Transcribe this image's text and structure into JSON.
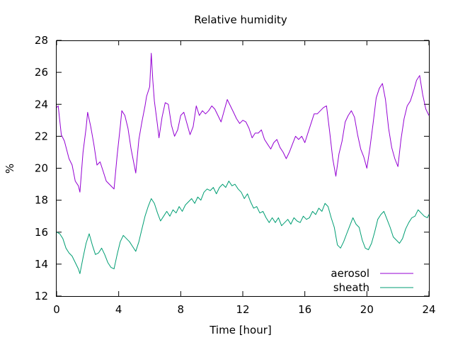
{
  "chart_data": {
    "type": "line",
    "title": "Relative humidity",
    "xlabel": "Time [hour]",
    "ylabel": "%",
    "xlim": [
      0,
      24
    ],
    "ylim": [
      12,
      28
    ],
    "xticks": [
      0,
      4,
      8,
      12,
      16,
      20,
      24
    ],
    "yticks": [
      12,
      14,
      16,
      18,
      20,
      22,
      24,
      26,
      28
    ],
    "grid": false,
    "legend_position": "bottom-right",
    "series": [
      {
        "name": "aerosol",
        "color": "#9400d3",
        "points": [
          [
            0.0,
            23.8
          ],
          [
            0.1,
            23.9
          ],
          [
            0.3,
            22.1
          ],
          [
            0.5,
            21.7
          ],
          [
            0.8,
            20.6
          ],
          [
            1.0,
            20.2
          ],
          [
            1.2,
            19.2
          ],
          [
            1.4,
            18.9
          ],
          [
            1.5,
            18.5
          ],
          [
            1.7,
            21.0
          ],
          [
            1.9,
            22.5
          ],
          [
            2.0,
            23.5
          ],
          [
            2.2,
            22.6
          ],
          [
            2.4,
            21.5
          ],
          [
            2.6,
            20.2
          ],
          [
            2.8,
            20.4
          ],
          [
            3.0,
            19.8
          ],
          [
            3.2,
            19.2
          ],
          [
            3.4,
            19.0
          ],
          [
            3.6,
            18.8
          ],
          [
            3.7,
            18.7
          ],
          [
            3.9,
            20.8
          ],
          [
            4.1,
            22.6
          ],
          [
            4.2,
            23.6
          ],
          [
            4.4,
            23.3
          ],
          [
            4.6,
            22.5
          ],
          [
            4.8,
            21.2
          ],
          [
            5.0,
            20.2
          ],
          [
            5.1,
            19.7
          ],
          [
            5.3,
            21.8
          ],
          [
            5.5,
            22.9
          ],
          [
            5.7,
            23.9
          ],
          [
            5.8,
            24.5
          ],
          [
            6.0,
            25.1
          ],
          [
            6.1,
            27.2
          ],
          [
            6.2,
            25.5
          ],
          [
            6.3,
            24.2
          ],
          [
            6.5,
            22.7
          ],
          [
            6.6,
            21.9
          ],
          [
            6.8,
            23.2
          ],
          [
            7.0,
            24.1
          ],
          [
            7.2,
            24.0
          ],
          [
            7.4,
            22.7
          ],
          [
            7.6,
            22.0
          ],
          [
            7.8,
            22.4
          ],
          [
            8.0,
            23.3
          ],
          [
            8.2,
            23.5
          ],
          [
            8.4,
            22.8
          ],
          [
            8.6,
            22.1
          ],
          [
            8.8,
            22.6
          ],
          [
            9.0,
            23.9
          ],
          [
            9.2,
            23.3
          ],
          [
            9.4,
            23.6
          ],
          [
            9.6,
            23.4
          ],
          [
            9.8,
            23.6
          ],
          [
            10.0,
            23.9
          ],
          [
            10.2,
            23.7
          ],
          [
            10.4,
            23.3
          ],
          [
            10.6,
            22.9
          ],
          [
            10.8,
            23.6
          ],
          [
            11.0,
            24.3
          ],
          [
            11.2,
            23.9
          ],
          [
            11.4,
            23.5
          ],
          [
            11.6,
            23.1
          ],
          [
            11.8,
            22.8
          ],
          [
            12.0,
            23.0
          ],
          [
            12.2,
            22.9
          ],
          [
            12.4,
            22.5
          ],
          [
            12.6,
            21.9
          ],
          [
            12.8,
            22.2
          ],
          [
            13.0,
            22.2
          ],
          [
            13.2,
            22.4
          ],
          [
            13.4,
            21.8
          ],
          [
            13.6,
            21.5
          ],
          [
            13.8,
            21.2
          ],
          [
            14.0,
            21.6
          ],
          [
            14.2,
            21.8
          ],
          [
            14.4,
            21.3
          ],
          [
            14.6,
            21.0
          ],
          [
            14.8,
            20.6
          ],
          [
            15.0,
            21.0
          ],
          [
            15.2,
            21.5
          ],
          [
            15.4,
            22.0
          ],
          [
            15.6,
            21.8
          ],
          [
            15.8,
            22.0
          ],
          [
            16.0,
            21.6
          ],
          [
            16.2,
            22.2
          ],
          [
            16.4,
            22.8
          ],
          [
            16.6,
            23.4
          ],
          [
            16.8,
            23.4
          ],
          [
            17.0,
            23.6
          ],
          [
            17.2,
            23.8
          ],
          [
            17.4,
            23.9
          ],
          [
            17.6,
            22.3
          ],
          [
            17.8,
            20.6
          ],
          [
            18.0,
            19.5
          ],
          [
            18.2,
            20.9
          ],
          [
            18.4,
            21.7
          ],
          [
            18.6,
            22.9
          ],
          [
            18.8,
            23.3
          ],
          [
            19.0,
            23.6
          ],
          [
            19.2,
            23.2
          ],
          [
            19.4,
            22.1
          ],
          [
            19.6,
            21.2
          ],
          [
            19.8,
            20.7
          ],
          [
            20.0,
            20.0
          ],
          [
            20.2,
            21.3
          ],
          [
            20.4,
            22.8
          ],
          [
            20.6,
            24.4
          ],
          [
            20.8,
            25.0
          ],
          [
            21.0,
            25.3
          ],
          [
            21.2,
            24.3
          ],
          [
            21.4,
            22.5
          ],
          [
            21.6,
            21.3
          ],
          [
            21.8,
            20.6
          ],
          [
            22.0,
            20.1
          ],
          [
            22.2,
            21.8
          ],
          [
            22.4,
            23.1
          ],
          [
            22.6,
            23.9
          ],
          [
            22.8,
            24.2
          ],
          [
            23.0,
            24.8
          ],
          [
            23.2,
            25.5
          ],
          [
            23.4,
            25.8
          ],
          [
            23.6,
            24.6
          ],
          [
            23.8,
            23.7
          ],
          [
            24.0,
            23.3
          ]
        ]
      },
      {
        "name": "sheath",
        "color": "#009e73",
        "points": [
          [
            0.0,
            16.0
          ],
          [
            0.2,
            15.9
          ],
          [
            0.4,
            15.6
          ],
          [
            0.6,
            15.0
          ],
          [
            0.8,
            14.7
          ],
          [
            1.0,
            14.5
          ],
          [
            1.2,
            14.1
          ],
          [
            1.4,
            13.7
          ],
          [
            1.5,
            13.4
          ],
          [
            1.7,
            14.4
          ],
          [
            1.9,
            15.3
          ],
          [
            2.1,
            15.9
          ],
          [
            2.3,
            15.2
          ],
          [
            2.5,
            14.6
          ],
          [
            2.7,
            14.7
          ],
          [
            2.9,
            15.0
          ],
          [
            3.1,
            14.6
          ],
          [
            3.3,
            14.1
          ],
          [
            3.5,
            13.8
          ],
          [
            3.7,
            13.7
          ],
          [
            3.9,
            14.6
          ],
          [
            4.1,
            15.4
          ],
          [
            4.3,
            15.8
          ],
          [
            4.5,
            15.6
          ],
          [
            4.7,
            15.4
          ],
          [
            4.9,
            15.1
          ],
          [
            5.1,
            14.8
          ],
          [
            5.3,
            15.4
          ],
          [
            5.5,
            16.2
          ],
          [
            5.7,
            17.0
          ],
          [
            5.9,
            17.6
          ],
          [
            6.1,
            18.1
          ],
          [
            6.3,
            17.8
          ],
          [
            6.5,
            17.2
          ],
          [
            6.7,
            16.7
          ],
          [
            6.9,
            17.0
          ],
          [
            7.1,
            17.3
          ],
          [
            7.3,
            17.0
          ],
          [
            7.5,
            17.4
          ],
          [
            7.7,
            17.2
          ],
          [
            7.9,
            17.6
          ],
          [
            8.1,
            17.3
          ],
          [
            8.3,
            17.7
          ],
          [
            8.5,
            17.9
          ],
          [
            8.7,
            18.1
          ],
          [
            8.9,
            17.8
          ],
          [
            9.1,
            18.2
          ],
          [
            9.3,
            18.0
          ],
          [
            9.5,
            18.5
          ],
          [
            9.7,
            18.7
          ],
          [
            9.9,
            18.6
          ],
          [
            10.1,
            18.8
          ],
          [
            10.3,
            18.4
          ],
          [
            10.5,
            18.8
          ],
          [
            10.7,
            19.0
          ],
          [
            10.9,
            18.8
          ],
          [
            11.1,
            19.2
          ],
          [
            11.3,
            18.9
          ],
          [
            11.5,
            19.0
          ],
          [
            11.7,
            18.7
          ],
          [
            11.9,
            18.5
          ],
          [
            12.1,
            18.1
          ],
          [
            12.3,
            18.4
          ],
          [
            12.5,
            17.9
          ],
          [
            12.7,
            17.5
          ],
          [
            12.9,
            17.6
          ],
          [
            13.1,
            17.2
          ],
          [
            13.3,
            17.3
          ],
          [
            13.5,
            16.9
          ],
          [
            13.7,
            16.6
          ],
          [
            13.9,
            16.9
          ],
          [
            14.1,
            16.6
          ],
          [
            14.3,
            16.9
          ],
          [
            14.5,
            16.4
          ],
          [
            14.7,
            16.6
          ],
          [
            14.9,
            16.8
          ],
          [
            15.1,
            16.5
          ],
          [
            15.3,
            16.9
          ],
          [
            15.5,
            16.7
          ],
          [
            15.7,
            16.6
          ],
          [
            15.9,
            17.0
          ],
          [
            16.1,
            16.8
          ],
          [
            16.3,
            16.9
          ],
          [
            16.5,
            17.3
          ],
          [
            16.7,
            17.1
          ],
          [
            16.9,
            17.5
          ],
          [
            17.1,
            17.3
          ],
          [
            17.3,
            17.8
          ],
          [
            17.5,
            17.6
          ],
          [
            17.7,
            16.9
          ],
          [
            17.9,
            16.3
          ],
          [
            18.1,
            15.2
          ],
          [
            18.3,
            15.0
          ],
          [
            18.5,
            15.4
          ],
          [
            18.7,
            15.9
          ],
          [
            18.9,
            16.4
          ],
          [
            19.1,
            16.9
          ],
          [
            19.3,
            16.5
          ],
          [
            19.5,
            16.3
          ],
          [
            19.7,
            15.5
          ],
          [
            19.9,
            15.0
          ],
          [
            20.1,
            14.9
          ],
          [
            20.3,
            15.3
          ],
          [
            20.5,
            16.0
          ],
          [
            20.7,
            16.8
          ],
          [
            20.9,
            17.1
          ],
          [
            21.1,
            17.3
          ],
          [
            21.3,
            16.8
          ],
          [
            21.5,
            16.3
          ],
          [
            21.7,
            15.7
          ],
          [
            21.9,
            15.5
          ],
          [
            22.1,
            15.3
          ],
          [
            22.3,
            15.6
          ],
          [
            22.5,
            16.2
          ],
          [
            22.7,
            16.6
          ],
          [
            22.9,
            16.9
          ],
          [
            23.1,
            17.0
          ],
          [
            23.3,
            17.4
          ],
          [
            23.5,
            17.2
          ],
          [
            23.7,
            17.0
          ],
          [
            23.9,
            16.9
          ],
          [
            24.0,
            17.1
          ]
        ]
      }
    ]
  }
}
